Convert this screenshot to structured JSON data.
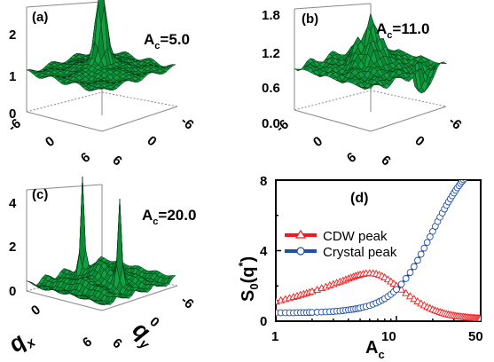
{
  "panels": [
    {
      "label": "(a)",
      "param_name": "A",
      "param_sub": "c",
      "param_value": "=5.0",
      "zticks": [
        "0",
        "1",
        "2"
      ],
      "xticks": [
        "-6",
        "0",
        "6"
      ],
      "yticks": [
        "-6",
        "0",
        "6"
      ]
    },
    {
      "label": "(b)",
      "param_name": "A",
      "param_sub": "c",
      "param_value": "=11.0",
      "zticks": [
        "0.0",
        "0.6",
        "1.2",
        "1.8"
      ],
      "xticks": [
        "-6",
        "0",
        "6"
      ],
      "yticks": [
        "-6",
        "0",
        "6"
      ]
    },
    {
      "label": "(c)",
      "param_name": "A",
      "param_sub": "c",
      "param_value": "=20.0",
      "zticks": [
        "0",
        "2",
        "4"
      ],
      "xticks": [
        "-6",
        "0",
        "6"
      ],
      "yticks": [
        "-6",
        "0",
        "6"
      ],
      "xlabel_main": "q",
      "xlabel_sub": "x",
      "ylabel_main": "q",
      "ylabel_sub": "y"
    }
  ],
  "chart_data": [
    {
      "panel": "(a)",
      "type": "surface",
      "zlim": [
        0,
        2
      ],
      "xlim": [
        -6,
        6
      ],
      "ylim": [
        -6,
        6
      ],
      "baseline": 0.75,
      "peaks": [
        {
          "x": 0,
          "y": 0,
          "z": 2.1
        }
      ]
    },
    {
      "panel": "(b)",
      "type": "surface",
      "zlim": [
        0,
        1.8
      ],
      "xlim": [
        -6,
        6
      ],
      "ylim": [
        -6,
        6
      ],
      "baseline": 0.75,
      "peaks": [
        {
          "x": 0,
          "y": 0,
          "z": 1.7
        }
      ]
    },
    {
      "panel": "(c)",
      "type": "surface",
      "zlim": [
        0,
        4
      ],
      "xlim": [
        -6,
        6
      ],
      "ylim": [
        -6,
        6
      ],
      "baseline": 0.75,
      "peaks": [
        {
          "x": -3,
          "y": 0,
          "z": 4.0
        },
        {
          "x": 3,
          "y": 0,
          "z": 3.5
        }
      ]
    },
    {
      "panel": "(d)",
      "type": "line",
      "label": "(d)",
      "xscale": "log",
      "xlim": [
        1,
        50
      ],
      "ylim": [
        0,
        8
      ],
      "xticks": [
        "1",
        "10",
        "50"
      ],
      "yticks": [
        "0",
        "4",
        "8"
      ],
      "xlabel_main": "A",
      "xlabel_sub": "c",
      "ylabel_main": "S",
      "ylabel_sub": "0",
      "ylabel_arg": "(q",
      "ylabel_sup": "*",
      "ylabel_end": ")",
      "legend_position": "top-left",
      "series": [
        {
          "name": "CDW peak",
          "color": "#ee1c1c",
          "marker": "triangle",
          "x": [
            1.0,
            1.1,
            1.2,
            1.3,
            1.4,
            1.5,
            1.6,
            1.7,
            1.8,
            1.9,
            2.0,
            2.2,
            2.4,
            2.6,
            2.8,
            3.0,
            3.2,
            3.4,
            3.6,
            3.8,
            4.0,
            4.2,
            4.4,
            4.6,
            4.8,
            5.0,
            5.3,
            5.6,
            6.0,
            6.4,
            6.8,
            7.2,
            7.6,
            8.0,
            8.5,
            9.0,
            9.5,
            10.0,
            11.0,
            12.0,
            13.0,
            14.0,
            15.0,
            16.0,
            17.0,
            18.0,
            19.0,
            20.0,
            21.0,
            22.0,
            23.0,
            24.0,
            25.0,
            26.0,
            27.0,
            28.0,
            29.0,
            30.0,
            31.0,
            32.0,
            33.0,
            34.0,
            35.0,
            36.0,
            37.0,
            38.0,
            39.0,
            40.0,
            41.0,
            42.0,
            43.0,
            44.0,
            45.0,
            46.0,
            47.0,
            48.0,
            49.0,
            50.0
          ],
          "y": [
            1.1,
            1.17,
            1.24,
            1.3,
            1.36,
            1.42,
            1.48,
            1.53,
            1.58,
            1.63,
            1.68,
            1.77,
            1.86,
            1.94,
            2.02,
            2.09,
            2.16,
            2.23,
            2.29,
            2.35,
            2.41,
            2.46,
            2.51,
            2.56,
            2.6,
            2.63,
            2.67,
            2.7,
            2.71,
            2.7,
            2.67,
            2.62,
            2.55,
            2.47,
            2.36,
            2.24,
            2.12,
            2.0,
            1.78,
            1.58,
            1.4,
            1.25,
            1.11,
            0.99,
            0.89,
            0.8,
            0.73,
            0.66,
            0.6,
            0.55,
            0.51,
            0.47,
            0.43,
            0.4,
            0.37,
            0.35,
            0.33,
            0.31,
            0.29,
            0.27,
            0.26,
            0.25,
            0.24,
            0.23,
            0.22,
            0.21,
            0.2,
            0.19,
            0.185,
            0.18,
            0.175,
            0.17,
            0.165,
            0.16,
            0.155,
            0.15,
            0.145,
            0.14
          ]
        },
        {
          "name": "Crystal peak",
          "color": "#1f4fa8",
          "marker": "circle",
          "x": [
            1.0,
            1.1,
            1.2,
            1.3,
            1.4,
            1.5,
            1.6,
            1.7,
            1.8,
            1.9,
            2.0,
            2.2,
            2.4,
            2.6,
            2.8,
            3.0,
            3.2,
            3.4,
            3.6,
            3.8,
            4.0,
            4.2,
            4.4,
            4.6,
            4.8,
            5.0,
            5.3,
            5.6,
            6.0,
            6.4,
            6.8,
            7.2,
            7.6,
            8.0,
            8.5,
            9.0,
            9.5,
            10.0,
            11.0,
            12.0,
            13.0,
            14.0,
            15.0,
            16.0,
            17.0,
            18.0,
            19.0,
            20.0,
            21.0,
            22.0,
            23.0,
            24.0,
            25.0,
            26.0,
            27.0,
            28.0,
            29.0,
            30.0,
            31.0,
            32.0,
            33.0,
            34.0,
            35.0,
            36.0,
            37.0,
            38.0,
            39.0,
            40.0,
            41.0,
            42.0,
            43.0,
            44.0,
            45.0,
            46.0,
            47.0
          ],
          "y": [
            0.48,
            0.48,
            0.48,
            0.48,
            0.48,
            0.49,
            0.49,
            0.49,
            0.49,
            0.5,
            0.5,
            0.51,
            0.52,
            0.53,
            0.54,
            0.55,
            0.57,
            0.58,
            0.6,
            0.62,
            0.64,
            0.66,
            0.68,
            0.7,
            0.72,
            0.75,
            0.79,
            0.83,
            0.89,
            0.96,
            1.03,
            1.11,
            1.19,
            1.28,
            1.4,
            1.52,
            1.66,
            1.8,
            2.1,
            2.42,
            2.76,
            3.1,
            3.45,
            3.8,
            4.14,
            4.47,
            4.79,
            5.09,
            5.38,
            5.65,
            5.9,
            6.14,
            6.36,
            6.57,
            6.76,
            6.94,
            7.11,
            7.27,
            7.42,
            7.56,
            7.69,
            7.81,
            7.92,
            8.02,
            8.11,
            8.2,
            8.28,
            8.35,
            8.42,
            8.48,
            8.54,
            8.59,
            8.64,
            8.69,
            8.73
          ]
        }
      ]
    }
  ]
}
